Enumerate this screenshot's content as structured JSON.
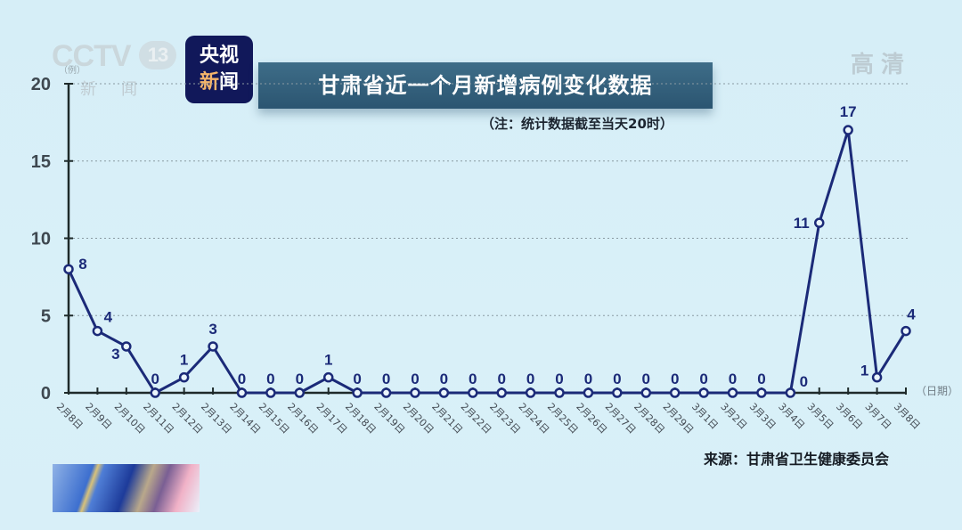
{
  "header": {
    "channel_logo": "CCTV",
    "channel_number": "13",
    "channel_sub": "新闻",
    "badge_line1": "央视",
    "badge_line2_a": "新",
    "badge_line2_b": "闻",
    "hd_label": "高清",
    "title": "甘肃省近一个月新增病例变化数据",
    "note": "（注：统计数据截至当天20时）"
  },
  "footer": {
    "source": "来源：甘肃省卫生健康委员会"
  },
  "colors": {
    "line": "#1b2a78",
    "axis": "#1e2a2a",
    "title_bg": "#315d7a",
    "badge_bg": "#11185a",
    "background": "#d7eff8"
  },
  "chart_data": {
    "type": "line",
    "title": "甘肃省近一个月新增病例变化数据",
    "subtitle": "（注：统计数据截至当天20时）",
    "xlabel": "（日期）",
    "ylabel": "（例）",
    "ylim": [
      0,
      20
    ],
    "yticks": [
      0,
      5,
      10,
      15,
      20
    ],
    "grid": "horizontal dotted",
    "categories": [
      "2月8日",
      "2月9日",
      "2月10日",
      "2月11日",
      "2月12日",
      "2月13日",
      "2月14日",
      "2月15日",
      "2月16日",
      "2月17日",
      "2月18日",
      "2月19日",
      "2月20日",
      "2月21日",
      "2月22日",
      "2月23日",
      "2月24日",
      "2月25日",
      "2月26日",
      "2月27日",
      "2月28日",
      "2月29日",
      "3月1日",
      "3月2日",
      "3月3日",
      "3月4日",
      "3月5日",
      "3月6日",
      "3月7日",
      "3月8日"
    ],
    "series": [
      {
        "name": "新增病例",
        "values": [
          8,
          4,
          3,
          0,
          1,
          3,
          0,
          0,
          0,
          1,
          0,
          0,
          0,
          0,
          0,
          0,
          0,
          0,
          0,
          0,
          0,
          0,
          0,
          0,
          0,
          0,
          11,
          17,
          1,
          4
        ]
      }
    ],
    "source": "来源：甘肃省卫生健康委员会"
  }
}
